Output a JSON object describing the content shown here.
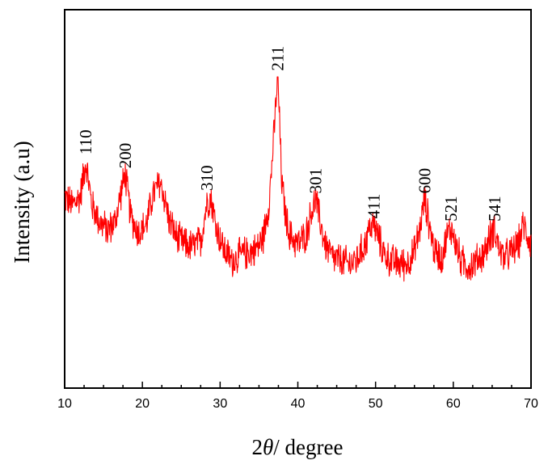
{
  "chart_data": {
    "type": "line",
    "title": "",
    "xlabel": {
      "prefix": "2",
      "symbol": "θ",
      "suffix": "/ degree"
    },
    "ylabel": "Intensity (a.u)",
    "xlim": [
      10,
      70
    ],
    "ylim": [
      0,
      100
    ],
    "x_ticks": [
      10,
      20,
      30,
      40,
      50,
      60,
      70
    ],
    "y_ticks_shown": false,
    "grid": false,
    "legend": "none",
    "line_color": "#ff0000",
    "series": [
      {
        "x": [
          10,
          11,
          12,
          12.7,
          13.5,
          14.5,
          15.5,
          16.5,
          17.2,
          17.8,
          18.5,
          19.5,
          20.5,
          21.3,
          21.8,
          22.3,
          22.8,
          23.5,
          24.5,
          25.5,
          26.5,
          27.5,
          28.3,
          28.8,
          29.5,
          30.5,
          31.5,
          32.5,
          33.5,
          34.5,
          35.5,
          36.3,
          36.9,
          37.2,
          37.4,
          37.6,
          37.9,
          38.4,
          39,
          40,
          41,
          41.8,
          42.3,
          42.8,
          43.5,
          44.5,
          45.5,
          46.5,
          47.5,
          48.5,
          49.3,
          49.8,
          50.4,
          51.2,
          52,
          53,
          54,
          55,
          55.8,
          56.3,
          56.8,
          57.5,
          58.5,
          59.2,
          59.7,
          60.3,
          61,
          62,
          63,
          64,
          64.8,
          65.3,
          65.8,
          66.5,
          67.5,
          68.5,
          69,
          69.5,
          70
        ],
        "y": [
          57,
          54,
          57,
          70,
          54,
          48,
          45,
          48,
          58,
          65,
          50,
          44,
          47,
          57,
          60,
          62,
          57,
          48,
          42,
          40,
          39,
          41,
          55,
          57,
          46,
          38,
          34,
          36,
          37,
          38,
          42,
          55,
          78,
          92,
          100,
          88,
          64,
          50,
          43,
          40,
          43,
          52,
          56,
          49,
          40,
          35,
          34,
          33,
          34,
          39,
          46,
          47,
          42,
          36,
          34,
          33,
          33,
          37,
          47,
          56,
          49,
          38,
          35,
          43,
          46,
          40,
          34,
          32,
          34,
          37,
          43,
          46,
          39,
          35,
          37,
          41,
          47,
          44,
          40
        ]
      }
    ],
    "peak_labels": [
      {
        "text": "110",
        "x": 12.7,
        "y": 71
      },
      {
        "text": "200",
        "x": 17.8,
        "y": 66
      },
      {
        "text": "310",
        "x": 28.3,
        "y": 58
      },
      {
        "text": "211",
        "x": 37.4,
        "y": 101
      },
      {
        "text": "301",
        "x": 42.3,
        "y": 57
      },
      {
        "text": "411",
        "x": 49.8,
        "y": 48
      },
      {
        "text": "600",
        "x": 56.3,
        "y": 57
      },
      {
        "text": "521",
        "x": 59.7,
        "y": 47
      },
      {
        "text": "541",
        "x": 65.3,
        "y": 47
      }
    ]
  }
}
